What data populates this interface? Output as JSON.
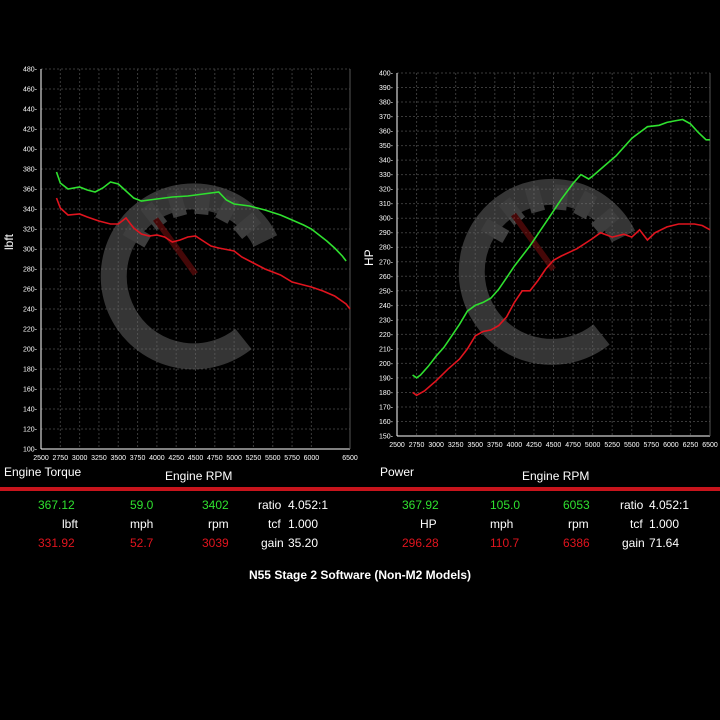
{
  "chart_data": [
    {
      "type": "line",
      "title": "Engine Torque",
      "xlabel": "Engine RPM",
      "ylabel": "lbft",
      "xlim": [
        2500,
        6500
      ],
      "ylim": [
        100,
        480
      ],
      "x_ticks": [
        2500,
        2750,
        3000,
        3250,
        3500,
        3750,
        4000,
        4250,
        4500,
        4750,
        5000,
        5250,
        5500,
        5750,
        6000,
        6500
      ],
      "y_ticks": [
        100,
        120,
        140,
        160,
        180,
        200,
        220,
        240,
        260,
        280,
        300,
        320,
        340,
        360,
        380,
        400,
        420,
        440,
        460,
        480
      ],
      "grid": true,
      "series": [
        {
          "color": "#2fe02f",
          "points": [
            [
              2700,
              377
            ],
            [
              2750,
              366
            ],
            [
              2850,
              360
            ],
            [
              3000,
              362
            ],
            [
              3100,
              359
            ],
            [
              3200,
              357
            ],
            [
              3300,
              361
            ],
            [
              3400,
              367
            ],
            [
              3500,
              365
            ],
            [
              3600,
              358
            ],
            [
              3700,
              351
            ],
            [
              3800,
              348
            ],
            [
              3900,
              349
            ],
            [
              4000,
              350
            ],
            [
              4200,
              352
            ],
            [
              4400,
              353
            ],
            [
              4600,
              355
            ],
            [
              4800,
              357
            ],
            [
              4900,
              349
            ],
            [
              5000,
              345
            ],
            [
              5200,
              343
            ],
            [
              5400,
              339
            ],
            [
              5600,
              334
            ],
            [
              5750,
              329
            ],
            [
              5900,
              324
            ],
            [
              6000,
              320
            ],
            [
              6100,
              314
            ],
            [
              6200,
              308
            ],
            [
              6300,
              301
            ],
            [
              6400,
              293
            ],
            [
              6450,
              288
            ]
          ]
        },
        {
          "color": "#e0141e",
          "points": [
            [
              2700,
              351
            ],
            [
              2750,
              341
            ],
            [
              2850,
              334
            ],
            [
              3000,
              335
            ],
            [
              3100,
              332
            ],
            [
              3250,
              328
            ],
            [
              3400,
              325
            ],
            [
              3500,
              325
            ],
            [
              3600,
              331
            ],
            [
              3700,
              321
            ],
            [
              3800,
              315
            ],
            [
              3900,
              313
            ],
            [
              4000,
              314
            ],
            [
              4100,
              312
            ],
            [
              4200,
              307
            ],
            [
              4300,
              309
            ],
            [
              4400,
              312
            ],
            [
              4500,
              313
            ],
            [
              4600,
              308
            ],
            [
              4700,
              303
            ],
            [
              4800,
              301
            ],
            [
              5000,
              298
            ],
            [
              5100,
              292
            ],
            [
              5250,
              286
            ],
            [
              5400,
              280
            ],
            [
              5600,
              274
            ],
            [
              5750,
              267
            ],
            [
              5900,
              264
            ],
            [
              6000,
              262
            ],
            [
              6150,
              258
            ],
            [
              6300,
              253
            ],
            [
              6450,
              245
            ],
            [
              6500,
              240
            ]
          ]
        }
      ]
    },
    {
      "type": "line",
      "title": "Power",
      "xlabel": "Engine RPM",
      "ylabel": "HP",
      "xlim": [
        2500,
        6500
      ],
      "ylim": [
        150,
        400
      ],
      "x_ticks": [
        2500,
        2750,
        3000,
        3250,
        3500,
        3750,
        4000,
        4250,
        4500,
        4750,
        5000,
        5250,
        5500,
        5750,
        6000,
        6250,
        6500
      ],
      "y_ticks": [
        150,
        160,
        170,
        180,
        190,
        200,
        210,
        220,
        230,
        240,
        250,
        260,
        270,
        280,
        290,
        300,
        310,
        320,
        330,
        340,
        350,
        360,
        370,
        380,
        390,
        400
      ],
      "grid": true,
      "series": [
        {
          "color": "#2fe02f",
          "points": [
            [
              2700,
              192
            ],
            [
              2750,
              190
            ],
            [
              2800,
              192
            ],
            [
              2900,
              198
            ],
            [
              3000,
              205
            ],
            [
              3100,
              211
            ],
            [
              3200,
              219
            ],
            [
              3300,
              227
            ],
            [
              3400,
              236
            ],
            [
              3500,
              240
            ],
            [
              3600,
              242
            ],
            [
              3700,
              245
            ],
            [
              3800,
              251
            ],
            [
              3900,
              259
            ],
            [
              4000,
              267
            ],
            [
              4200,
              281
            ],
            [
              4400,
              297
            ],
            [
              4600,
              313
            ],
            [
              4750,
              324
            ],
            [
              4850,
              330
            ],
            [
              4950,
              327
            ],
            [
              5000,
              329
            ],
            [
              5150,
              336
            ],
            [
              5300,
              343
            ],
            [
              5500,
              355
            ],
            [
              5700,
              363
            ],
            [
              5850,
              364
            ],
            [
              5950,
              366
            ],
            [
              6050,
              367
            ],
            [
              6150,
              368
            ],
            [
              6250,
              365
            ],
            [
              6350,
              359
            ],
            [
              6450,
              354
            ],
            [
              6500,
              354
            ]
          ]
        },
        {
          "color": "#e0141e",
          "points": [
            [
              2700,
              180
            ],
            [
              2750,
              178
            ],
            [
              2850,
              181
            ],
            [
              3000,
              188
            ],
            [
              3150,
              196
            ],
            [
              3300,
              203
            ],
            [
              3400,
              210
            ],
            [
              3500,
              219
            ],
            [
              3600,
              222
            ],
            [
              3700,
              223
            ],
            [
              3800,
              226
            ],
            [
              3900,
              232
            ],
            [
              4000,
              242
            ],
            [
              4100,
              250
            ],
            [
              4200,
              250
            ],
            [
              4300,
              257
            ],
            [
              4400,
              265
            ],
            [
              4500,
              271
            ],
            [
              4600,
              274
            ],
            [
              4800,
              279
            ],
            [
              5000,
              286
            ],
            [
              5100,
              290
            ],
            [
              5250,
              287
            ],
            [
              5400,
              289
            ],
            [
              5500,
              287
            ],
            [
              5600,
              292
            ],
            [
              5700,
              285
            ],
            [
              5800,
              290
            ],
            [
              5950,
              294
            ],
            [
              6100,
              296
            ],
            [
              6300,
              296
            ],
            [
              6400,
              295
            ],
            [
              6500,
              292
            ]
          ]
        }
      ]
    }
  ],
  "stats": {
    "left": {
      "row1": {
        "v1": "367.12",
        "v2": "59.0",
        "v3": "3402",
        "k": "ratio",
        "kv": "4.052:1"
      },
      "row2": {
        "v1": "lbft",
        "v2": "mph",
        "v3": "rpm",
        "k": "tcf",
        "kv": "1.000"
      },
      "row3": {
        "v1": "331.92",
        "v2": "52.7",
        "v3": "3039",
        "k": "gain",
        "kv": "35.20"
      }
    },
    "right": {
      "row1": {
        "v1": "367.92",
        "v2": "105.0",
        "v3": "6053",
        "k": "ratio",
        "kv": "4.052:1"
      },
      "row2": {
        "v1": "HP",
        "v2": "mph",
        "v3": "rpm",
        "k": "tcf",
        "kv": "1.000"
      },
      "row3": {
        "v1": "296.28",
        "v2": "110.7",
        "v3": "6386",
        "k": "gain",
        "kv": "71.64"
      }
    }
  },
  "footer_title": "N55 Stage 2 Software (Non-M2 Models)",
  "colors": {
    "tuned": "#2fe02f",
    "stock": "#e0141e",
    "accent_bar": "#c8141c",
    "grid": "#3a3a3a"
  }
}
